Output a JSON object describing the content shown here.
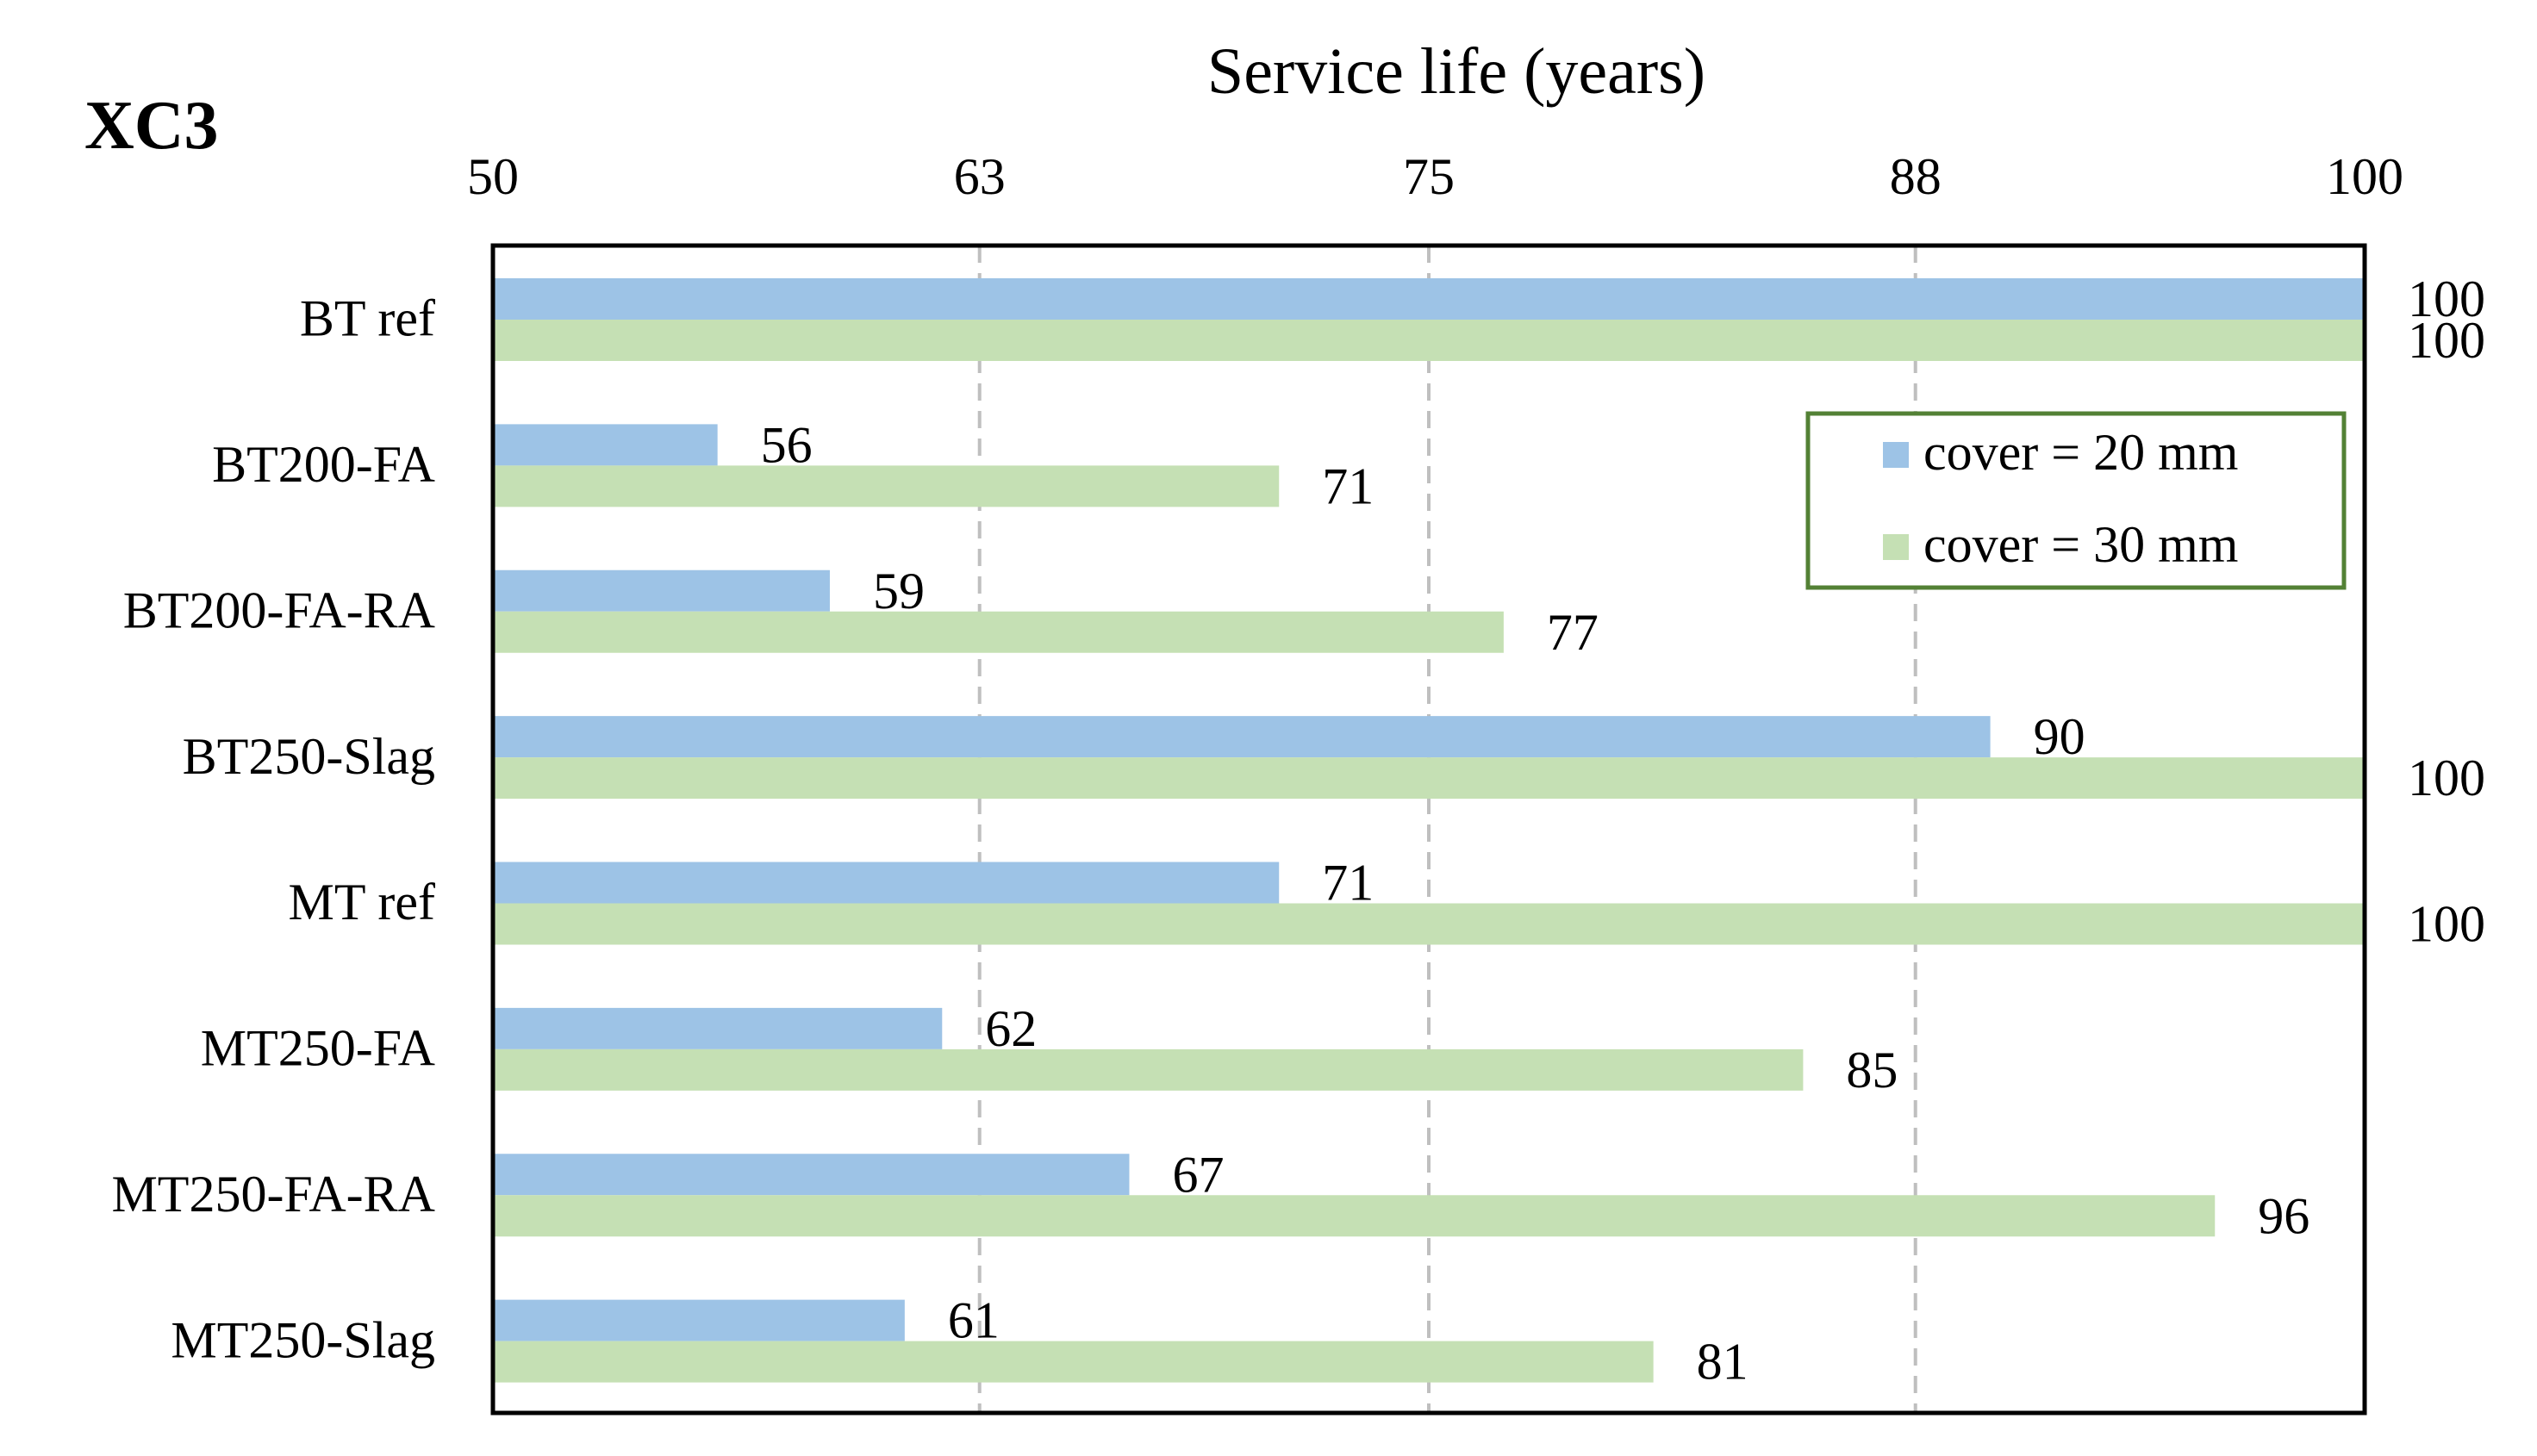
{
  "chart_data": {
    "type": "bar",
    "orientation": "horizontal",
    "panel_label": "XC3",
    "title": "Service life (years)",
    "xlabel": "Service life (years)",
    "ylabel": "",
    "xlim": [
      50,
      100
    ],
    "x_ticks": [
      50,
      63,
      75,
      88,
      100
    ],
    "x_axis_position": "top",
    "grid": "vertical dashed",
    "legend_position": "top-right",
    "categories": [
      "BT ref",
      "BT200-FA",
      "BT200-FA-RA",
      "BT250-Slag",
      "MT ref",
      "MT250-FA",
      "MT250-FA-RA",
      "MT250-Slag"
    ],
    "series": [
      {
        "name": "cover = 20 mm",
        "color": "#9dc3e6",
        "values": [
          100,
          56,
          59,
          90,
          71,
          62,
          67,
          61
        ]
      },
      {
        "name": "cover = 30 mm",
        "color": "#c5e0b4",
        "values": [
          100,
          71,
          77,
          100,
          100,
          85,
          96,
          81
        ]
      }
    ],
    "legend_border_color": "#538135"
  }
}
